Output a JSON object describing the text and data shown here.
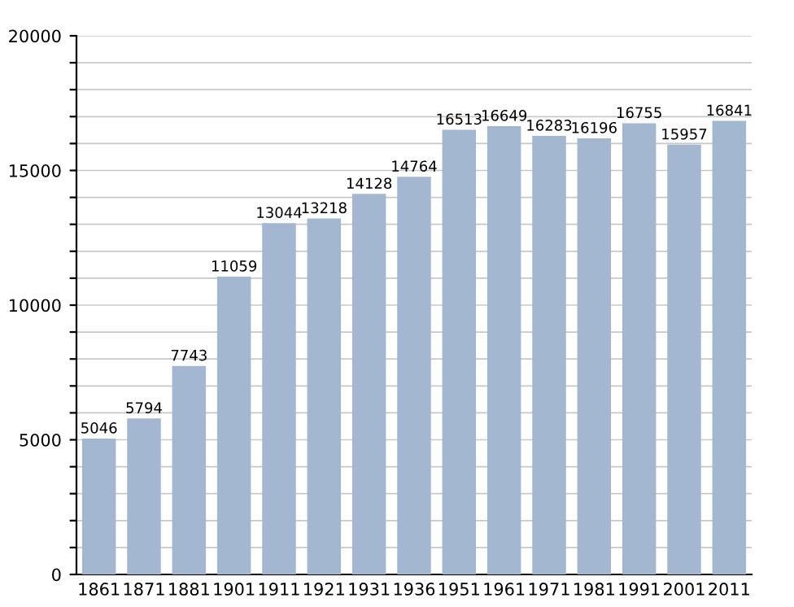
{
  "chart_data": {
    "type": "bar",
    "categories": [
      "1861",
      "1871",
      "1881",
      "1901",
      "1911",
      "1921",
      "1931",
      "1936",
      "1951",
      "1961",
      "1971",
      "1981",
      "1991",
      "2001",
      "2011"
    ],
    "values": [
      5046,
      5794,
      7743,
      11059,
      13044,
      13218,
      14128,
      14764,
      16513,
      16649,
      16283,
      16196,
      16755,
      15957,
      16841
    ],
    "color": "#a3b8d0",
    "ylim": [
      0,
      20000
    ],
    "yticks": [
      0,
      {
        "value": 1000,
        "label": null
      },
      {
        "value": 2000,
        "label": null
      },
      {
        "value": 3000,
        "label": null
      },
      {
        "value": 4000,
        "label": null
      },
      5000,
      {
        "value": 6000,
        "label": null
      },
      {
        "value": 7000,
        "label": null
      },
      {
        "value": 8000,
        "label": null
      },
      {
        "value": 9000,
        "label": null
      },
      10000,
      {
        "value": 11000,
        "label": null
      },
      {
        "value": 12000,
        "label": null
      },
      {
        "value": 13000,
        "label": null
      },
      {
        "value": 14000,
        "label": null
      },
      15000,
      {
        "value": 16000,
        "label": null
      },
      {
        "value": 17000,
        "label": null
      },
      {
        "value": 18000,
        "label": null
      },
      {
        "value": 19000,
        "label": null
      },
      20000
    ],
    "grid": "y",
    "data_labels": true
  }
}
